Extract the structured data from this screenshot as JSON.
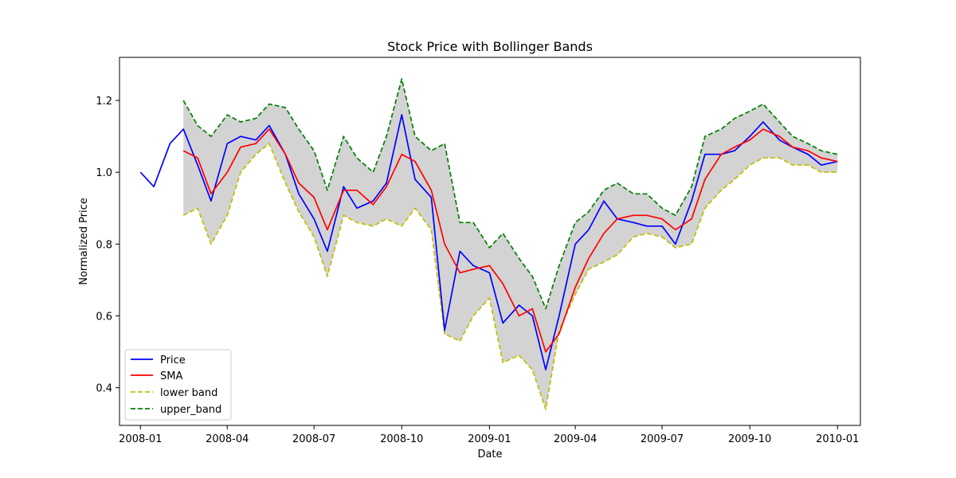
{
  "chart_data": {
    "type": "line",
    "title": "Stock Price with Bollinger Bands",
    "xlabel": "Date",
    "ylabel": "Normalized Price",
    "xlim": [
      "2007-12-10",
      "2010-01-25"
    ],
    "ylim": [
      0.295,
      1.32
    ],
    "x_ticks": [
      "2008-01",
      "2008-04",
      "2008-07",
      "2008-10",
      "2009-01",
      "2009-04",
      "2009-07",
      "2009-10",
      "2010-01"
    ],
    "y_ticks": [
      0.4,
      0.6,
      0.8,
      1.0,
      1.2
    ],
    "y_tick_labels": [
      "0.4",
      "0.6",
      "0.8",
      "1.0",
      "1.2"
    ],
    "legend_position": "lower-left",
    "band_fill_color": "#d3d3d3",
    "x": [
      "2008-01-01",
      "2008-01-15",
      "2008-02-01",
      "2008-02-15",
      "2008-03-01",
      "2008-03-15",
      "2008-04-01",
      "2008-04-15",
      "2008-05-01",
      "2008-05-15",
      "2008-06-01",
      "2008-06-15",
      "2008-07-01",
      "2008-07-15",
      "2008-08-01",
      "2008-08-15",
      "2008-09-01",
      "2008-09-15",
      "2008-10-01",
      "2008-10-15",
      "2008-11-01",
      "2008-11-15",
      "2008-12-01",
      "2008-12-15",
      "2009-01-01",
      "2009-01-15",
      "2009-02-01",
      "2009-02-15",
      "2009-03-01",
      "2009-03-15",
      "2009-04-01",
      "2009-04-15",
      "2009-05-01",
      "2009-05-15",
      "2009-06-01",
      "2009-06-15",
      "2009-07-01",
      "2009-07-15",
      "2009-08-01",
      "2009-08-15",
      "2009-09-01",
      "2009-09-15",
      "2009-10-01",
      "2009-10-15",
      "2009-11-01",
      "2009-11-15",
      "2009-12-01",
      "2009-12-15",
      "2010-01-01"
    ],
    "series": [
      {
        "name": "Price",
        "color": "#0000ff",
        "dash": "solid",
        "values": [
          1.0,
          0.96,
          1.08,
          1.12,
          1.02,
          0.92,
          1.08,
          1.1,
          1.09,
          1.13,
          1.05,
          0.94,
          0.87,
          0.78,
          0.96,
          0.9,
          0.92,
          0.97,
          1.16,
          0.98,
          0.93,
          0.56,
          0.78,
          0.74,
          0.72,
          0.58,
          0.63,
          0.6,
          0.45,
          0.6,
          0.8,
          0.84,
          0.92,
          0.87,
          0.86,
          0.85,
          0.85,
          0.8,
          0.92,
          1.05,
          1.05,
          1.06,
          1.1,
          1.14,
          1.09,
          1.07,
          1.05,
          1.02,
          1.03
        ]
      },
      {
        "name": "SMA",
        "color": "#ff0000",
        "dash": "solid",
        "values": [
          null,
          null,
          null,
          1.06,
          1.04,
          0.94,
          1.0,
          1.07,
          1.08,
          1.12,
          1.05,
          0.97,
          0.93,
          0.84,
          0.95,
          0.95,
          0.91,
          0.96,
          1.05,
          1.03,
          0.95,
          0.8,
          0.72,
          0.73,
          0.74,
          0.69,
          0.6,
          0.62,
          0.5,
          0.55,
          0.68,
          0.76,
          0.83,
          0.87,
          0.88,
          0.88,
          0.87,
          0.84,
          0.87,
          0.98,
          1.05,
          1.07,
          1.09,
          1.12,
          1.1,
          1.07,
          1.06,
          1.04,
          1.03
        ]
      },
      {
        "name": "lower band",
        "color": "#bfbf00",
        "dash": "dashed",
        "values": [
          null,
          null,
          null,
          0.88,
          0.9,
          0.8,
          0.88,
          1.0,
          1.05,
          1.08,
          0.97,
          0.89,
          0.82,
          0.71,
          0.88,
          0.86,
          0.85,
          0.87,
          0.85,
          0.9,
          0.84,
          0.55,
          0.53,
          0.6,
          0.65,
          0.47,
          0.49,
          0.45,
          0.34,
          0.56,
          0.66,
          0.73,
          0.75,
          0.77,
          0.82,
          0.83,
          0.82,
          0.79,
          0.8,
          0.9,
          0.95,
          0.98,
          1.02,
          1.04,
          1.04,
          1.02,
          1.02,
          1.0,
          1.0
        ]
      },
      {
        "name": "upper_band",
        "color": "#008000",
        "dash": "dashed",
        "values": [
          null,
          null,
          null,
          1.2,
          1.13,
          1.1,
          1.16,
          1.14,
          1.15,
          1.19,
          1.18,
          1.12,
          1.06,
          0.95,
          1.1,
          1.04,
          1.0,
          1.1,
          1.26,
          1.1,
          1.06,
          1.08,
          0.86,
          0.86,
          0.79,
          0.83,
          0.76,
          0.71,
          0.62,
          0.74,
          0.86,
          0.89,
          0.95,
          0.97,
          0.94,
          0.94,
          0.9,
          0.88,
          0.96,
          1.1,
          1.12,
          1.15,
          1.17,
          1.19,
          1.14,
          1.1,
          1.08,
          1.06,
          1.05
        ]
      }
    ]
  }
}
